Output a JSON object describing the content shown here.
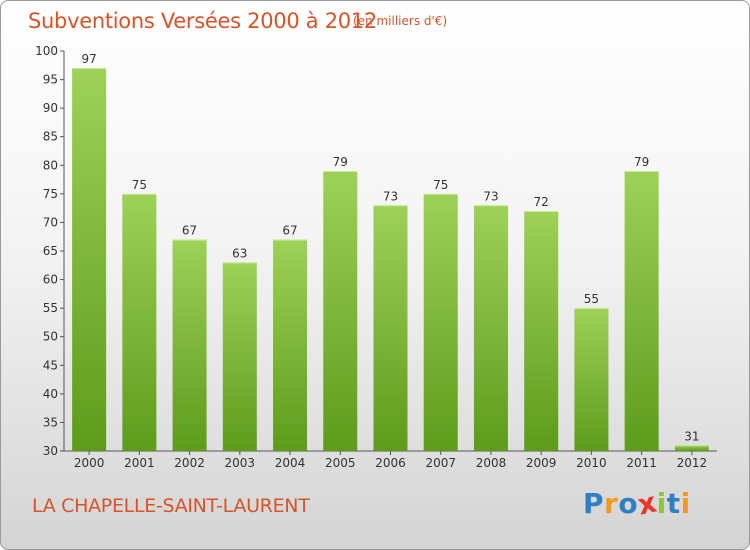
{
  "chart_data": {
    "type": "bar",
    "title": "Subventions Versées 2000 à 2012",
    "subtitle": "(en milliers d'€)",
    "categories": [
      "2000",
      "2001",
      "2002",
      "2003",
      "2004",
      "2005",
      "2006",
      "2007",
      "2008",
      "2009",
      "2010",
      "2011",
      "2012"
    ],
    "values": [
      97,
      75,
      67,
      63,
      67,
      79,
      73,
      75,
      73,
      72,
      55,
      79,
      31
    ],
    "ylim": [
      30,
      100
    ],
    "yticks": [
      30,
      35,
      40,
      45,
      50,
      55,
      60,
      65,
      70,
      75,
      80,
      85,
      90,
      95,
      100
    ],
    "grid": false,
    "bar_color": "#8cc63f",
    "bar_color_dark": "#5c9a1a"
  },
  "footer": {
    "commune": "LA CHAPELLE-SAINT-LAURENT",
    "logo_letters": [
      {
        "ch": "P",
        "color": "#2e7fc4"
      },
      {
        "ch": "r",
        "color": "#f29a1e"
      },
      {
        "ch": "o",
        "color": "#2e7fc4"
      },
      {
        "ch": "x",
        "color": "#e8362d"
      },
      {
        "ch": "i",
        "color": "#8cc63f"
      },
      {
        "ch": "t",
        "color": "#2e7fc4"
      },
      {
        "ch": "i",
        "color": "#f29a1e"
      }
    ]
  }
}
